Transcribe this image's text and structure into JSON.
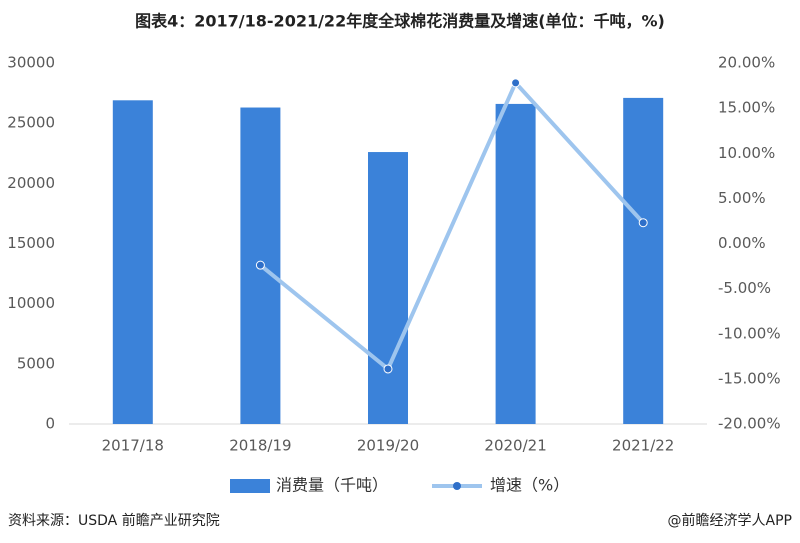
{
  "chart_data": {
    "type": "bar_line",
    "title": "图表4：2017/18-2021/22年度全球棉花消费量及增速(单位：千吨，%)",
    "categories": [
      "2017/18",
      "2018/19",
      "2019/20",
      "2020/21",
      "2021/22"
    ],
    "series": [
      {
        "name": "消费量（千吨）",
        "color": "#3b82d9",
        "values": [
          26900,
          26300,
          22600,
          26600,
          27100
        ]
      },
      {
        "name": "增速（%）",
        "color": "#9ec5ee",
        "marker_color": "#2e6fc9",
        "axis": "y2",
        "values": [
          null,
          -2.4,
          -13.9,
          17.8,
          2.3
        ]
      }
    ],
    "ylim": [
      0,
      30000
    ],
    "yticks": [
      0,
      5000,
      10000,
      15000,
      20000,
      25000,
      30000
    ],
    "y2lim": [
      -20,
      20
    ],
    "y2ticks": [
      {
        "value": -20,
        "label": "-20.00%"
      },
      {
        "value": -15,
        "label": "-15.00%"
      },
      {
        "value": -10,
        "label": "-10.00%"
      },
      {
        "value": -5,
        "label": "-5.00%"
      },
      {
        "value": 0,
        "label": "0.00%"
      },
      {
        "value": 5,
        "label": "5.00%"
      },
      {
        "value": 10,
        "label": "10.00%"
      },
      {
        "value": 15,
        "label": "15.00%"
      },
      {
        "value": 20,
        "label": "20.00%"
      }
    ],
    "source": "资料来源：USDA 前瞻产业研究院",
    "credit": "@前瞻经济学人APP"
  }
}
